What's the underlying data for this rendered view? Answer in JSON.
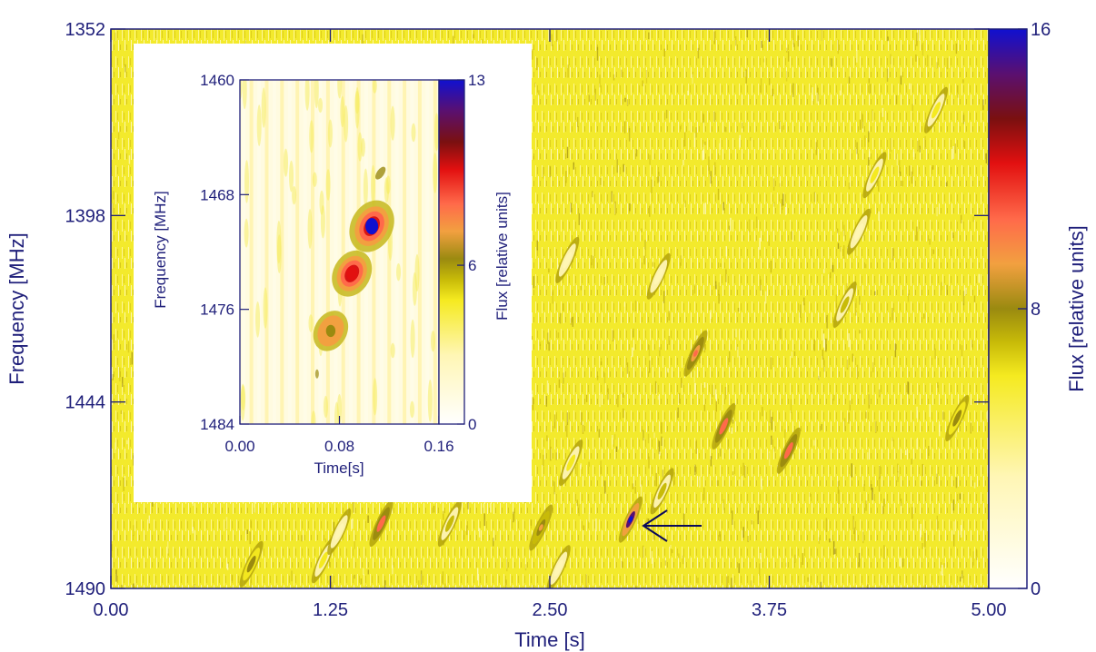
{
  "chart_data": [
    {
      "type": "heatmap",
      "title": "",
      "xlabel": "Time [s]",
      "ylabel": "Frequency [MHz]",
      "colorbar_label": "Flux [relative units]",
      "xlim": [
        0,
        5
      ],
      "ylim": [
        1352,
        1490
      ],
      "y_inverted": true,
      "colorbar_range": [
        0,
        16
      ],
      "xticks": [
        "0.00",
        "1.25",
        "2.50",
        "3.75",
        "5.00"
      ],
      "yticks": [
        "1352",
        "1398",
        "1444",
        "1490"
      ],
      "colorbar_ticks": [
        "0",
        "8",
        "16"
      ],
      "background_level": 4.5,
      "bursts": [
        {
          "t": 0.8,
          "f": 1484,
          "peak": 9
        },
        {
          "t": 1.21,
          "f": 1483,
          "peak": 7
        },
        {
          "t": 1.54,
          "f": 1474,
          "peak": 12
        },
        {
          "t": 1.93,
          "f": 1474,
          "peak": 8
        },
        {
          "t": 2.45,
          "f": 1475,
          "peak": 10
        },
        {
          "t": 2.62,
          "f": 1459,
          "peak": 7
        },
        {
          "t": 2.96,
          "f": 1473,
          "peak": 16
        },
        {
          "t": 3.14,
          "f": 1466,
          "peak": 8
        },
        {
          "t": 3.33,
          "f": 1432,
          "peak": 11
        },
        {
          "t": 3.49,
          "f": 1450,
          "peak": 12
        },
        {
          "t": 3.86,
          "f": 1456,
          "peak": 12
        },
        {
          "t": 4.18,
          "f": 1420,
          "peak": 8
        },
        {
          "t": 4.35,
          "f": 1388,
          "peak": 7
        },
        {
          "t": 4.7,
          "f": 1372,
          "peak": 7
        },
        {
          "t": 4.82,
          "f": 1448,
          "peak": 9
        },
        {
          "t": 2.6,
          "f": 1409,
          "peak": 6
        },
        {
          "t": 3.12,
          "f": 1413,
          "peak": 6
        },
        {
          "t": 1.3,
          "f": 1476,
          "peak": 6
        },
        {
          "t": 2.55,
          "f": 1485,
          "peak": 5
        },
        {
          "t": 4.26,
          "f": 1402,
          "peak": 5
        }
      ],
      "annotation": {
        "type": "arrow",
        "points_to_t": 2.96,
        "points_to_f": 1473
      }
    },
    {
      "type": "heatmap",
      "title": "",
      "xlabel": "Time[s]",
      "ylabel": "Frequency [MHz]",
      "colorbar_label": "Flux [relative units]",
      "xlim": [
        0,
        0.16
      ],
      "ylim": [
        1460,
        1484
      ],
      "y_inverted": true,
      "colorbar_range": [
        0,
        13
      ],
      "xticks": [
        "0.00",
        "0.08",
        "0.16"
      ],
      "yticks": [
        "1460",
        "1468",
        "1476",
        "1484"
      ],
      "colorbar_ticks": [
        "0",
        "6",
        "13"
      ],
      "components": [
        {
          "t": 0.106,
          "f": 1470.2,
          "peak": 13
        },
        {
          "t": 0.09,
          "f": 1473.5,
          "peak": 10
        },
        {
          "t": 0.073,
          "f": 1477.5,
          "peak": 7
        }
      ]
    }
  ]
}
